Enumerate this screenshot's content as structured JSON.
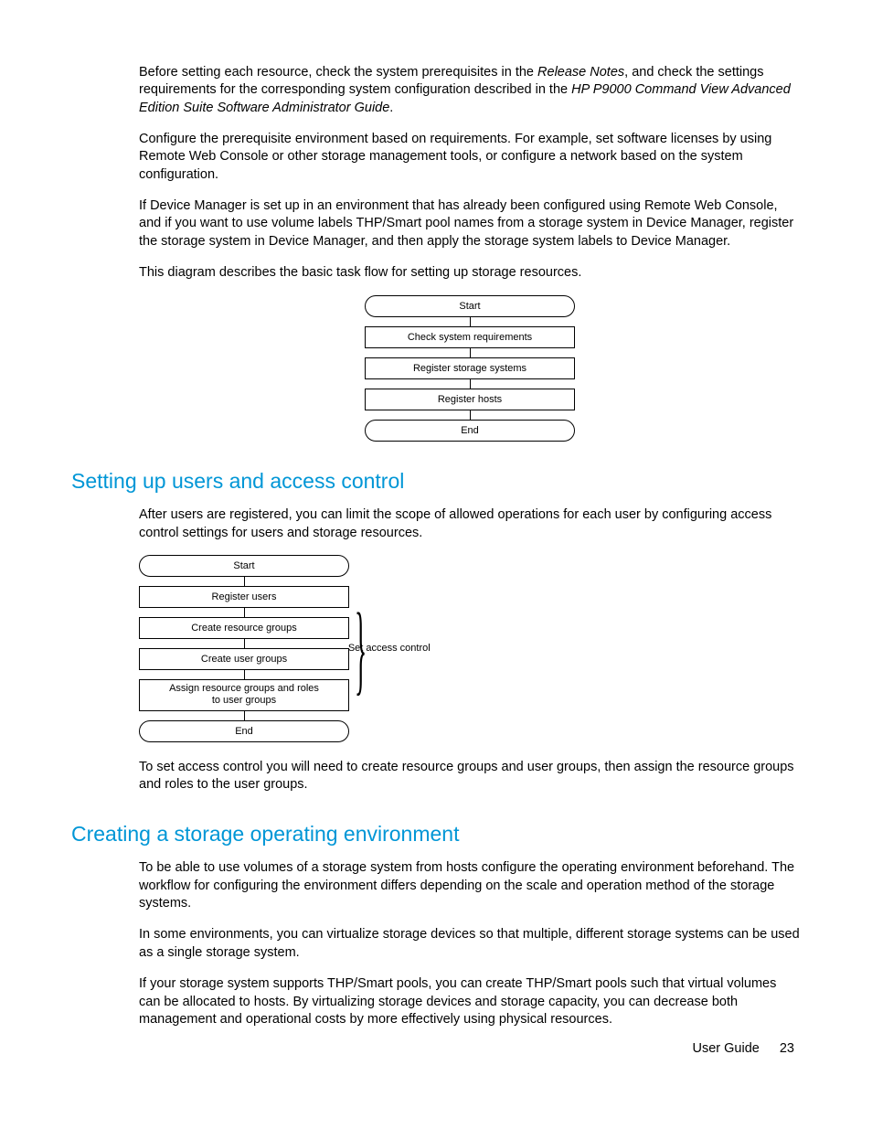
{
  "para1_a": "Before setting each resource, check the system prerequisites in the ",
  "para1_i1": "Release Notes",
  "para1_b": ", and check the settings requirements for the corresponding system configuration described in the ",
  "para1_i2": "HP P9000 Command View Advanced Edition Suite Software Administrator Guide",
  "para1_c": ".",
  "para2": "Configure the prerequisite environment based on requirements. For example, set software licenses by using Remote Web Console or other storage management tools, or configure a network based on the system configuration.",
  "para3": "If Device Manager is set up in an environment that has already been configured using Remote Web Console, and if you want to use volume labels THP/Smart pool names from a storage system in Device Manager, register the storage system in Device Manager, and then apply the storage system labels to Device Manager.",
  "para4": "This diagram describes the basic task flow for setting up storage resources.",
  "flow1": {
    "start": "Start",
    "s1": "Check system requirements",
    "s2": "Register storage systems",
    "s3": "Register hosts",
    "end": "End"
  },
  "heading2": "Setting up users and access control",
  "para5": "After users are registered, you can limit the scope of allowed operations for each user by configuring access control settings for users and storage resources.",
  "flow2": {
    "start": "Start",
    "s1": "Register users",
    "s2": "Create resource groups",
    "s3": "Create user groups",
    "s4a": "Assign resource groups and roles",
    "s4b": "to user groups",
    "end": "End",
    "brace": "Set access control"
  },
  "para6": "To set access control you will need to create resource groups and user groups, then assign the resource groups and roles to the user groups.",
  "heading3": "Creating a storage operating environment",
  "para7": "To be able to use volumes of a storage system from hosts configure the operating environment beforehand. The workflow for configuring the environment differs depending on the scale and operation method of the storage systems.",
  "para8": "In some environments, you can virtualize storage devices so that multiple, different storage systems can be used as a single storage system.",
  "para9": "If your storage system supports THP/Smart pools, you can create THP/Smart pools such that virtual volumes can be allocated to hosts. By virtualizing storage devices and storage capacity, you can decrease both management and operational costs by more effectively using physical resources.",
  "footer_label": "User Guide",
  "footer_page": "23",
  "colors": {
    "heading": "#0096d6",
    "text": "#000000",
    "bg": "#ffffff"
  }
}
